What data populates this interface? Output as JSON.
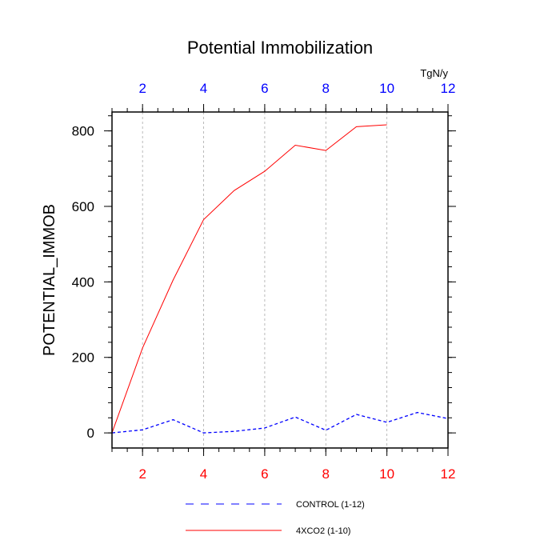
{
  "chart_data": {
    "type": "line",
    "title": "Potential Immobilization",
    "ylabel": "POTENTIAL_IMMOB",
    "top_axis_units": "TgN/y",
    "xlim": [
      1,
      12
    ],
    "ylim": [
      -40,
      850
    ],
    "x_ticks": [
      2,
      4,
      6,
      8,
      10,
      12
    ],
    "y_ticks": [
      0,
      200,
      400,
      600,
      800
    ],
    "grid": "vertical dashed",
    "colors": {
      "bottom_ticks": "#ff0000",
      "top_ticks": "#0000ff",
      "grid": "#aaaaaa"
    },
    "series": [
      {
        "name": "CONTROL (1-12)",
        "color": "#0000ff",
        "dash": "dashed",
        "x": [
          1,
          2,
          3,
          4,
          5,
          6,
          7,
          8,
          9,
          10,
          11,
          12
        ],
        "values": [
          0,
          8,
          35,
          0,
          4,
          13,
          42,
          7,
          49,
          28,
          54,
          38
        ]
      },
      {
        "name": "4XCO2 (1-10)",
        "color": "#ff0000",
        "dash": "solid",
        "x": [
          1,
          2,
          3,
          4,
          5,
          6,
          7,
          8,
          9,
          10
        ],
        "values": [
          0,
          225,
          405,
          565,
          642,
          693,
          762,
          748,
          811,
          816
        ]
      }
    ]
  }
}
